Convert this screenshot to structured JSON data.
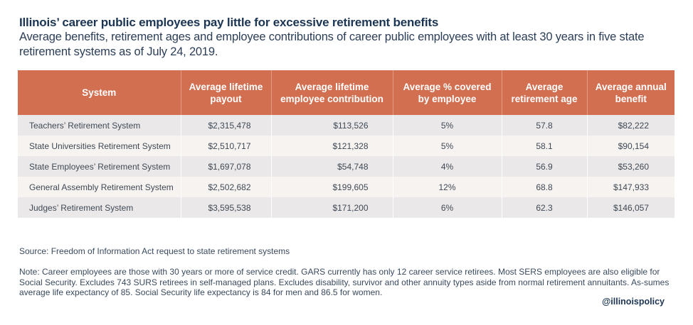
{
  "header": {
    "title": "Illinois’ career public employees pay little for excessive retirement benefits",
    "subtitle": "Average benefits, retirement ages and employee contributions of career public employees with at least 30 years in five state retirement systems as of July 24, 2019."
  },
  "table": {
    "columns": [
      "System",
      "Average lifetime payout",
      "Average lifetime employee contribution",
      "Average % covered by employee",
      "Average retirement age",
      "Average annual benefit"
    ],
    "rows": [
      [
        "Teachers’ Retirement System",
        "$2,315,478",
        "$113,526",
        "5%",
        "57.8",
        "$82,222"
      ],
      [
        "State Universities Retirement System",
        "$2,510,717",
        "$121,328",
        "5%",
        "58.1",
        "$90,154"
      ],
      [
        "State Employees’ Retirement System",
        "$1,697,078",
        "$54,748",
        "4%",
        "56.9",
        "$53,260"
      ],
      [
        "General Assembly Retirement System",
        "$2,502,682",
        "$199,605",
        "12%",
        "68.8",
        "$147,933"
      ],
      [
        "Judges’ Retirement System",
        "$3,595,538",
        "$171,200",
        "6%",
        "62.3",
        "$146,057"
      ]
    ],
    "colors": {
      "header_bg": "#d26f51",
      "header_text": "#ffffff",
      "row_odd": "#ebe8e9",
      "row_even": "#f6f3f1"
    }
  },
  "footer": {
    "source": "Source: Freedom of Information Act request to state retirement systems",
    "note": "Note: Career employees are those with 30 years or more of service credit. GARS currently has only 12 career service retirees. Most SERS employees are also eligible for Social Security. Excludes 743 SURS retirees in self-managed plans. Excludes disability, survivor and other annuity types aside from normal retirement annuitants. As-sumes average life expectancy of 85. Social Security life expectancy is 84 for men and 86.5 for women.",
    "handle": "@illinoispolicy"
  }
}
